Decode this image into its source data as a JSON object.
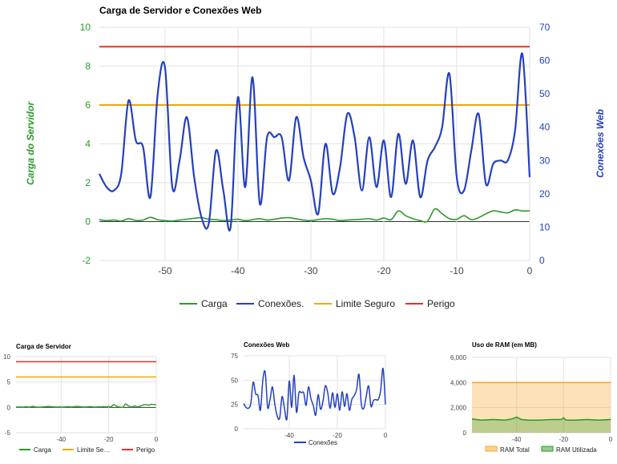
{
  "colors": {
    "carga": "#2a9a2a",
    "conexoes": "#2440c0",
    "limite": "#f0a800",
    "perigo": "#e0322a",
    "ram_total": "#f5a623",
    "ram_utilizada": "#2a9a2a"
  },
  "chart_data": [
    {
      "type": "line",
      "title": "Carga de Servidor e Conexões Web",
      "ylabel_left": "Carga do Servidor",
      "ylabel_right": "Conexões Web",
      "xlim": [
        -59,
        0
      ],
      "xticks": [
        -50,
        -40,
        -30,
        -20,
        -10,
        0
      ],
      "ylim_left": [
        -2,
        10
      ],
      "yticks_left": [
        -2,
        0,
        2,
        4,
        6,
        8,
        10
      ],
      "ylim_right": [
        0,
        70
      ],
      "yticks_right": [
        0,
        10,
        20,
        30,
        40,
        50,
        60,
        70
      ],
      "legend": "bottom",
      "series": [
        {
          "name": "Carga",
          "axis": "left",
          "x": [
            -59,
            -58,
            -57,
            -56,
            -55,
            -54,
            -53,
            -52,
            -51,
            -50,
            -49,
            -48,
            -47,
            -46,
            -45,
            -44,
            -43,
            -42,
            -41,
            -40,
            -39,
            -38,
            -37,
            -36,
            -35,
            -34,
            -33,
            -32,
            -31,
            -30,
            -29,
            -28,
            -27,
            -26,
            -25,
            -24,
            -23,
            -22,
            -21,
            -20,
            -19,
            -18,
            -17,
            -16,
            -15,
            -14,
            -13,
            -12,
            -11,
            -10,
            -9,
            -8,
            -7,
            -6,
            -5,
            -4,
            -3,
            -2,
            -1,
            0
          ],
          "values": [
            0.1,
            0.05,
            0.08,
            0.03,
            0.15,
            0.06,
            0.08,
            0.22,
            0.1,
            0.05,
            0.03,
            0.08,
            0.12,
            0.17,
            0.2,
            0.12,
            0.1,
            0.05,
            0.08,
            0.12,
            0.05,
            0.1,
            0.15,
            0.08,
            0.12,
            0.18,
            0.2,
            0.14,
            0.08,
            0.05,
            0.1,
            0.15,
            0.12,
            0.05,
            0.08,
            0.1,
            0.12,
            0.15,
            0.08,
            0.18,
            0.1,
            0.55,
            0.3,
            0.15,
            0.05,
            0.02,
            0.65,
            0.4,
            0.15,
            0.12,
            0.3,
            0.1,
            0.2,
            0.4,
            0.55,
            0.5,
            0.45,
            0.6,
            0.55,
            0.55
          ]
        },
        {
          "name": "Conexões.",
          "axis": "right",
          "x": [
            -59,
            -58,
            -57,
            -56,
            -55,
            -54,
            -53,
            -52,
            -51,
            -50,
            -49,
            -48,
            -47,
            -46,
            -45,
            -44,
            -43,
            -42,
            -41,
            -40,
            -39,
            -38,
            -37,
            -36,
            -35,
            -34,
            -33,
            -32,
            -31,
            -30,
            -29,
            -28,
            -27,
            -26,
            -25,
            -24,
            -23,
            -22,
            -21,
            -20,
            -19,
            -18,
            -17,
            -16,
            -15,
            -14,
            -13,
            -12,
            -11,
            -10,
            -9,
            -8,
            -7,
            -6,
            -5,
            -4,
            -3,
            -2,
            -1,
            0
          ],
          "values": [
            26,
            22,
            21,
            26,
            48,
            36,
            34,
            19,
            50,
            58,
            22,
            30,
            43,
            25,
            13,
            11,
            33,
            21,
            10,
            49,
            22,
            55,
            17,
            37,
            37,
            37,
            24,
            43,
            31,
            24,
            14,
            35,
            20,
            28,
            44,
            37,
            21,
            37,
            22,
            36,
            19,
            38,
            23,
            36,
            19,
            30,
            34,
            40,
            56,
            25,
            21,
            33,
            44,
            23,
            29,
            30,
            30,
            39,
            62,
            25
          ]
        },
        {
          "name": "Limite Seguro",
          "axis": "left",
          "x": [
            -59,
            0
          ],
          "values": [
            6,
            6
          ]
        },
        {
          "name": "Perigo",
          "axis": "left",
          "x": [
            -59,
            0
          ],
          "values": [
            9,
            9
          ]
        }
      ]
    },
    {
      "type": "line",
      "title": "Carga de Servidor",
      "xlim": [
        -59,
        0
      ],
      "xticks": [
        -40,
        -20,
        0
      ],
      "ylim": [
        -5,
        10
      ],
      "yticks": [
        -5,
        0,
        5,
        10
      ],
      "legend": "bottom",
      "series": [
        {
          "name": "Carga",
          "ref": "carga"
        },
        {
          "name": "Limite Se…",
          "x": [
            -59,
            0
          ],
          "values": [
            6,
            6
          ]
        },
        {
          "name": "Perigo",
          "x": [
            -59,
            0
          ],
          "values": [
            9,
            9
          ]
        }
      ]
    },
    {
      "type": "line",
      "title": "Conexões Web",
      "xlim": [
        -59,
        0
      ],
      "xticks": [
        -40,
        -20,
        0
      ],
      "ylim": [
        0,
        75
      ],
      "yticks": [
        0,
        25,
        50,
        75
      ],
      "legend": "bottom",
      "series": [
        {
          "name": "Conexões",
          "ref": "conexoes"
        }
      ]
    },
    {
      "type": "area",
      "title": "Uso de RAM (em MB)",
      "xlim": [
        -59,
        0
      ],
      "xticks": [
        -40,
        -20,
        0
      ],
      "ylim": [
        0,
        6000
      ],
      "yticks": [
        "0",
        "2,000",
        "4,000",
        "6,000"
      ],
      "legend": "bottom",
      "series": [
        {
          "name": "RAM Total",
          "x": [
            -59,
            0
          ],
          "values": [
            4000,
            4000
          ]
        },
        {
          "name": "RAM Utilizada",
          "x": [
            -59,
            -55,
            -50,
            -45,
            -42,
            -40,
            -38,
            -35,
            -30,
            -25,
            -21,
            -20,
            -19,
            -15,
            -10,
            -5,
            0
          ],
          "values": [
            1100,
            1000,
            1050,
            1000,
            1100,
            1250,
            1050,
            1000,
            1000,
            1050,
            1050,
            1200,
            1000,
            1000,
            1050,
            1000,
            1050
          ]
        }
      ]
    }
  ]
}
